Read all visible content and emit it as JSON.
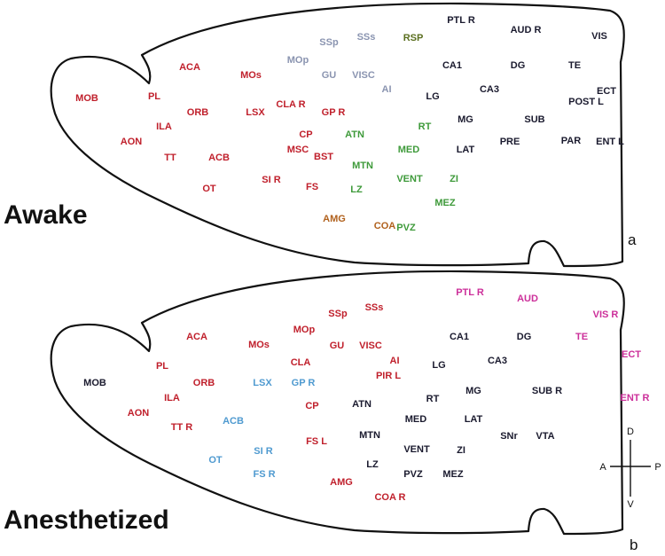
{
  "colors": {
    "red": "#c0202c",
    "dark": "#1a1a2e",
    "gray": "#8a94b0",
    "green": "#3e9a3a",
    "olive": "#5a6e1e",
    "brown": "#b0601c",
    "blue": "#4f9ad0",
    "magenta": "#cc2f9a"
  },
  "panels": [
    {
      "state_label": "Awake",
      "letter": "a",
      "regions": [
        {
          "label": "PTL R",
          "color": "dark"
        },
        {
          "label": "AUD R",
          "color": "dark"
        },
        {
          "label": "VIS",
          "color": "dark"
        },
        {
          "label": "SSp",
          "color": "gray"
        },
        {
          "label": "SSs",
          "color": "gray"
        },
        {
          "label": "RSP",
          "color": "olive"
        },
        {
          "label": "MOp",
          "color": "gray"
        },
        {
          "label": "CA1",
          "color": "dark"
        },
        {
          "label": "DG",
          "color": "dark"
        },
        {
          "label": "TE",
          "color": "dark"
        },
        {
          "label": "ACA",
          "color": "red"
        },
        {
          "label": "MOs",
          "color": "red"
        },
        {
          "label": "GU",
          "color": "gray"
        },
        {
          "label": "VISC",
          "color": "gray"
        },
        {
          "label": "AI",
          "color": "gray"
        },
        {
          "label": "ECT",
          "color": "dark"
        },
        {
          "label": "CA3",
          "color": "dark"
        },
        {
          "label": "MOB",
          "color": "red"
        },
        {
          "label": "PL",
          "color": "red"
        },
        {
          "label": "LG",
          "color": "dark"
        },
        {
          "label": "POST L",
          "color": "dark"
        },
        {
          "label": "CLA R",
          "color": "red"
        },
        {
          "label": "ORB",
          "color": "red"
        },
        {
          "label": "LSX",
          "color": "red"
        },
        {
          "label": "GP R",
          "color": "red"
        },
        {
          "label": "MG",
          "color": "dark"
        },
        {
          "label": "SUB",
          "color": "dark"
        },
        {
          "label": "ILA",
          "color": "red"
        },
        {
          "label": "RT",
          "color": "green"
        },
        {
          "label": "ATN",
          "color": "green"
        },
        {
          "label": "CP",
          "color": "red"
        },
        {
          "label": "AON",
          "color": "red"
        },
        {
          "label": "PRE",
          "color": "dark"
        },
        {
          "label": "PAR",
          "color": "dark"
        },
        {
          "label": "ENT L",
          "color": "dark"
        },
        {
          "label": "MSC",
          "color": "red"
        },
        {
          "label": "MED",
          "color": "green"
        },
        {
          "label": "LAT",
          "color": "dark"
        },
        {
          "label": "TT",
          "color": "red"
        },
        {
          "label": "ACB",
          "color": "red"
        },
        {
          "label": "BST",
          "color": "red"
        },
        {
          "label": "MTN",
          "color": "green"
        },
        {
          "label": "SI R",
          "color": "red"
        },
        {
          "label": "VENT",
          "color": "green"
        },
        {
          "label": "ZI",
          "color": "green"
        },
        {
          "label": "OT",
          "color": "red"
        },
        {
          "label": "FS",
          "color": "red"
        },
        {
          "label": "LZ",
          "color": "green"
        },
        {
          "label": "AMG",
          "color": "brown"
        },
        {
          "label": "PVZ",
          "color": "green"
        },
        {
          "label": "MEZ",
          "color": "green"
        },
        {
          "label": "COA",
          "color": "brown"
        }
      ]
    },
    {
      "state_label": "Anesthetized",
      "letter": "b",
      "regions": [
        {
          "label": "PTL R",
          "color": "magenta"
        },
        {
          "label": "AUD",
          "color": "magenta"
        },
        {
          "label": "SSs",
          "color": "red"
        },
        {
          "label": "SSp",
          "color": "red"
        },
        {
          "label": "VIS R",
          "color": "magenta"
        },
        {
          "label": "MOp",
          "color": "red"
        },
        {
          "label": "ACA",
          "color": "red"
        },
        {
          "label": "MOs",
          "color": "red"
        },
        {
          "label": "GU",
          "color": "red"
        },
        {
          "label": "VISC",
          "color": "red"
        },
        {
          "label": "CA1",
          "color": "dark"
        },
        {
          "label": "DG",
          "color": "dark"
        },
        {
          "label": "TE",
          "color": "magenta"
        },
        {
          "label": "ECT",
          "color": "magenta"
        },
        {
          "label": "CA3",
          "color": "dark"
        },
        {
          "label": "AI",
          "color": "red"
        },
        {
          "label": "CLA",
          "color": "red"
        },
        {
          "label": "PL",
          "color": "red"
        },
        {
          "label": "LG",
          "color": "dark"
        },
        {
          "label": "MOB",
          "color": "dark"
        },
        {
          "label": "ORB",
          "color": "red"
        },
        {
          "label": "LSX",
          "color": "blue"
        },
        {
          "label": "GP R",
          "color": "blue"
        },
        {
          "label": "PIR L",
          "color": "red"
        },
        {
          "label": "MG",
          "color": "dark"
        },
        {
          "label": "SUB R",
          "color": "dark"
        },
        {
          "label": "ILA",
          "color": "red"
        },
        {
          "label": "RT",
          "color": "dark"
        },
        {
          "label": "ATN",
          "color": "dark"
        },
        {
          "label": "ENT R",
          "color": "magenta"
        },
        {
          "label": "AON",
          "color": "red"
        },
        {
          "label": "CP",
          "color": "red"
        },
        {
          "label": "MED",
          "color": "dark"
        },
        {
          "label": "LAT",
          "color": "dark"
        },
        {
          "label": "ACB",
          "color": "blue"
        },
        {
          "label": "TT R",
          "color": "red"
        },
        {
          "label": "MTN",
          "color": "dark"
        },
        {
          "label": "SNr",
          "color": "dark"
        },
        {
          "label": "VTA",
          "color": "dark"
        },
        {
          "label": "FS L",
          "color": "red"
        },
        {
          "label": "SI R",
          "color": "blue"
        },
        {
          "label": "VENT",
          "color": "dark"
        },
        {
          "label": "ZI",
          "color": "dark"
        },
        {
          "label": "OT",
          "color": "blue"
        },
        {
          "label": "LZ",
          "color": "dark"
        },
        {
          "label": "FS R",
          "color": "blue"
        },
        {
          "label": "PVZ",
          "color": "dark"
        },
        {
          "label": "MEZ",
          "color": "dark"
        },
        {
          "label": "AMG",
          "color": "red"
        },
        {
          "label": "COA R",
          "color": "red"
        }
      ]
    }
  ],
  "compass": {
    "dorsal": "D",
    "ventral": "V",
    "anterior": "A",
    "posterior": "P"
  }
}
